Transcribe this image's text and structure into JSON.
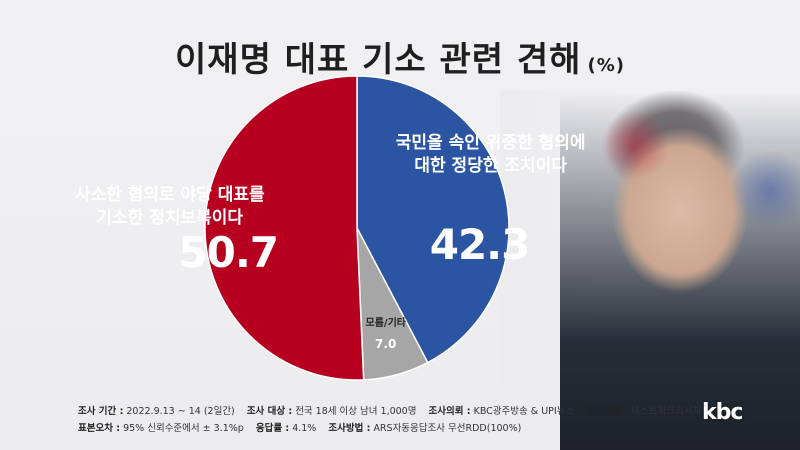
{
  "title": "이재명 대표 기소 관련 견해",
  "unit": "(%)",
  "chart_data": {
    "type": "pie",
    "title": "이재명 대표 기소 관련 견해",
    "unit": "%",
    "slices": [
      {
        "label": "국민을 속인 위중한 혐의에 대한 정당한 조치이다",
        "label_lines": [
          "국민을 속인 위중한 혐의에",
          "대한 정당한 조치이다"
        ],
        "value": 42.3,
        "value_text": "42.3",
        "color": "#2b55a3"
      },
      {
        "label": "모름/기타",
        "label_lines": [
          "모름/기타"
        ],
        "value": 7.0,
        "value_text": "7.0",
        "color": "#a6a6a6"
      },
      {
        "label": "사소한 혐의로 야당 대표를 기소한 정치보복이다",
        "label_lines": [
          "사소한 혐의로 야당 대표를",
          "기소한 정치보복이다"
        ],
        "value": 50.7,
        "value_text": "50.7",
        "color": "#b7001f"
      }
    ],
    "start": "12 o'clock",
    "direction": "clockwise"
  },
  "footer": {
    "line1": [
      {
        "key": "조사 기간 :",
        "value": "2022.9.13 ~ 14 (2일간)"
      },
      {
        "key": "조사 대상 :",
        "value": "전국 18세 이상 남녀 1,000명"
      },
      {
        "key": "조사의뢰 :",
        "value": "KBC광주방송 & UPI뉴스"
      },
      {
        "key": "조사기관 :",
        "value": "넥스트위크리서치"
      }
    ],
    "line2": [
      {
        "key": "표본오차 :",
        "value": "95% 신뢰수준에서 ± 3.1%p"
      },
      {
        "key": "응답률 :",
        "value": "4.1%"
      },
      {
        "key": "조사방법 :",
        "value": "ARS자동응답조사 무선RDD(100%)"
      }
    ]
  },
  "logo": "kbc"
}
